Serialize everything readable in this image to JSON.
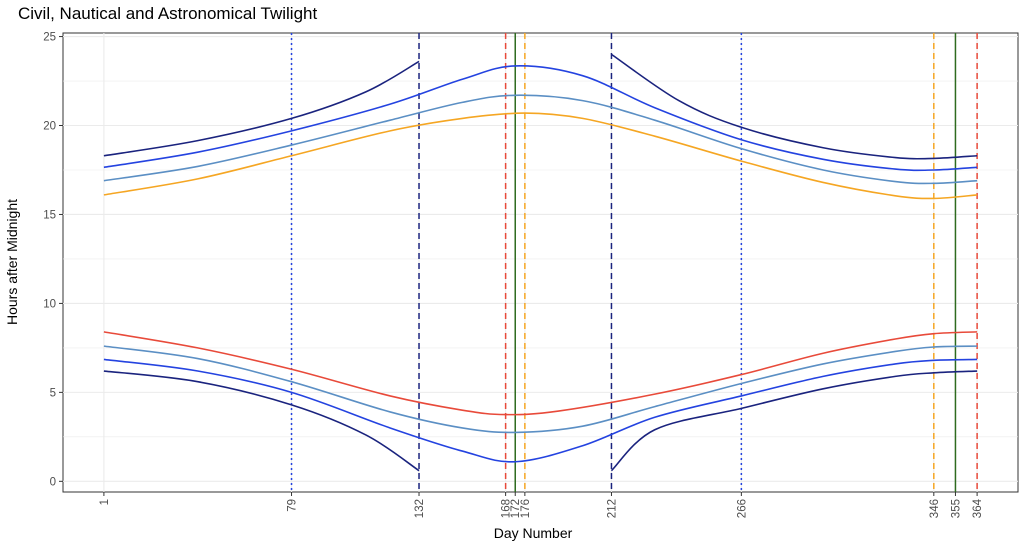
{
  "chart_data": {
    "type": "line",
    "title": "Civil, Nautical and Astronomical Twilight",
    "xlabel": "Day Number",
    "ylabel": "Hours after Midnight",
    "xlim": [
      1,
      364
    ],
    "ylim": [
      0,
      25
    ],
    "x_tick_labels": [
      "1",
      "79",
      "132",
      "168",
      "172",
      "176",
      "212",
      "266",
      "346",
      "355",
      "364"
    ],
    "y_tick_labels": [
      "0",
      "5",
      "10",
      "15",
      "20",
      "25"
    ],
    "grid": true,
    "legend": "none",
    "colors": {
      "astronomical": "#1a237e",
      "nautical": "#2443e0",
      "civil": "#5b8fc4",
      "sunset": "#f5a623",
      "sunrise": "#e84a3a",
      "solstice": "#2e6b1f"
    },
    "series": [
      {
        "color": "#1a237e",
        "segments": [
          {
            "x": [
              1,
              40,
              79,
              110,
              132
            ],
            "y": [
              18.3,
              19.15,
              20.4,
              21.9,
              23.6
            ]
          },
          {
            "x": [
              212,
              240,
              266,
              300,
              330,
              346,
              364
            ],
            "y": [
              24.0,
              21.4,
              19.9,
              18.75,
              18.2,
              18.15,
              18.3
            ]
          }
        ]
      },
      {
        "color": "#2443e0",
        "segments": [
          {
            "x": [
              1,
              40,
              79,
              120,
              150,
              172,
              200,
              230,
              266,
              300,
              330,
              346,
              364
            ],
            "y": [
              17.65,
              18.5,
              19.7,
              21.2,
              22.6,
              23.35,
              22.8,
              21.0,
              19.2,
              18.1,
              17.55,
              17.5,
              17.65
            ]
          }
        ]
      },
      {
        "color": "#5b8fc4",
        "segments": [
          {
            "x": [
              1,
              40,
              79,
              120,
              150,
              172,
              200,
              230,
              266,
              300,
              330,
              346,
              364
            ],
            "y": [
              16.9,
              17.7,
              18.9,
              20.3,
              21.3,
              21.7,
              21.4,
              20.3,
              18.7,
              17.5,
              16.85,
              16.75,
              16.9
            ]
          }
        ]
      },
      {
        "color": "#f5a623",
        "segments": [
          {
            "x": [
              1,
              40,
              79,
              120,
              150,
              176,
              200,
              230,
              266,
              300,
              330,
              346,
              364
            ],
            "y": [
              16.1,
              17.0,
              18.3,
              19.7,
              20.4,
              20.7,
              20.4,
              19.4,
              18.0,
              16.8,
              16.05,
              15.9,
              16.1
            ]
          }
        ]
      },
      {
        "color": "#e84a3a",
        "segments": [
          {
            "x": [
              1,
              40,
              79,
              120,
              150,
              168,
              190,
              230,
              266,
              300,
              330,
              346,
              364
            ],
            "y": [
              8.4,
              7.5,
              6.3,
              4.8,
              4.0,
              3.75,
              3.95,
              4.9,
              6.0,
              7.2,
              8.0,
              8.3,
              8.4
            ]
          }
        ]
      },
      {
        "color": "#5b8fc4",
        "segments": [
          {
            "x": [
              1,
              40,
              79,
              120,
              150,
              172,
              200,
              230,
              266,
              300,
              330,
              346,
              364
            ],
            "y": [
              7.6,
              6.9,
              5.6,
              3.9,
              3.0,
              2.75,
              3.1,
              4.2,
              5.5,
              6.6,
              7.3,
              7.55,
              7.6
            ]
          }
        ]
      },
      {
        "color": "#2443e0",
        "segments": [
          {
            "x": [
              1,
              40,
              79,
              120,
              150,
              172,
              200,
              230,
              266,
              300,
              330,
              346,
              364
            ],
            "y": [
              6.85,
              6.2,
              5.0,
              3.0,
              1.7,
              1.1,
              2.0,
              3.6,
              4.8,
              5.9,
              6.6,
              6.8,
              6.85
            ]
          }
        ]
      },
      {
        "color": "#1a237e",
        "segments": [
          {
            "x": [
              1,
              40,
              79,
              110,
              132
            ],
            "y": [
              6.2,
              5.6,
              4.3,
              2.6,
              0.6
            ]
          },
          {
            "x": [
              212,
              230,
              266,
              300,
              330,
              346,
              364
            ],
            "y": [
              0.6,
              2.9,
              4.1,
              5.2,
              5.9,
              6.1,
              6.2
            ]
          }
        ]
      }
    ],
    "vlines": [
      {
        "x": 79,
        "color": "#2443e0",
        "style": "dotted"
      },
      {
        "x": 132,
        "color": "#1a237e",
        "style": "dashed"
      },
      {
        "x": 168,
        "color": "#e84a3a",
        "style": "dashed"
      },
      {
        "x": 172,
        "color": "#2e6b1f",
        "style": "solid"
      },
      {
        "x": 176,
        "color": "#f5a623",
        "style": "dashed"
      },
      {
        "x": 212,
        "color": "#1a237e",
        "style": "dashed"
      },
      {
        "x": 266,
        "color": "#2443e0",
        "style": "dotted"
      },
      {
        "x": 346,
        "color": "#f5a623",
        "style": "dashed"
      },
      {
        "x": 355,
        "color": "#2e6b1f",
        "style": "solid"
      },
      {
        "x": 364,
        "color": "#e84a3a",
        "style": "dashed"
      }
    ]
  }
}
